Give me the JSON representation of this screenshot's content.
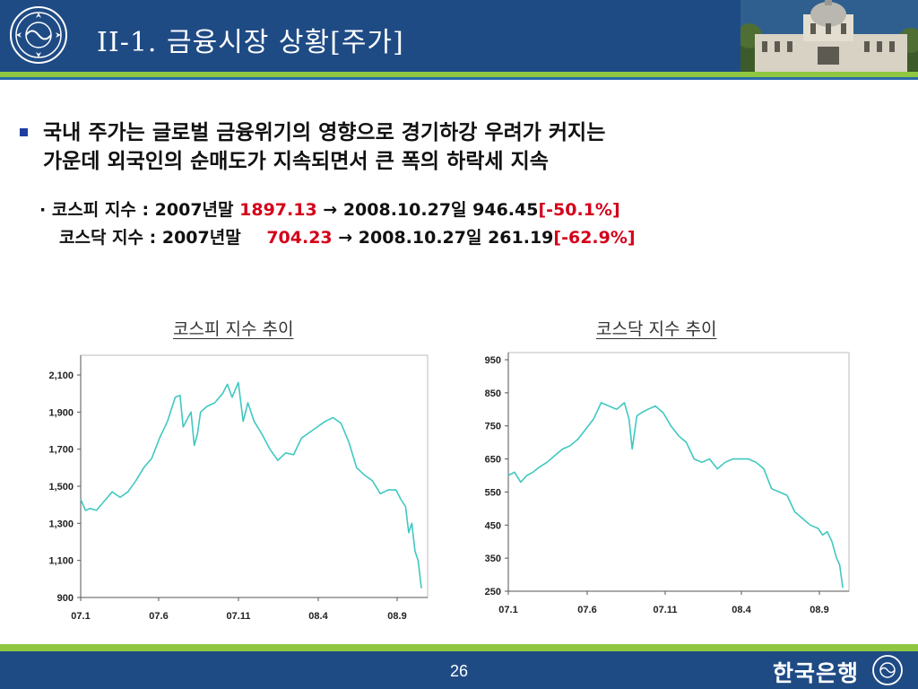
{
  "header": {
    "title": "II-1. 금융시장 상황[주가]"
  },
  "body": {
    "main_line1": "국내 주가는 글로벌 금융위기의 영향으로 경기하강 우려가 커지는",
    "main_line2": "가운데 외국인의 순매도가 지속되면서 큰 폭의 하락세 지속",
    "kospi": {
      "prefix": "· 코스피 지수 : 2007년말 ",
      "start": "1897.13",
      "arrow": " → 2008.10.27일 946.45",
      "change": "[-50.1%]"
    },
    "kosdaq": {
      "prefix": "코스닥 지수 : 2007년말 ",
      "start": "704.23",
      "arrow": " → 2008.10.27일 261.19",
      "change": "[-62.9%]"
    }
  },
  "footer": {
    "page": "26",
    "bank_name": "한국은행"
  },
  "colors": {
    "header": "#1f4b85",
    "accent_green": "#8fc742",
    "line": "#40c8c0",
    "highlight_red": "#d4001a"
  },
  "chart_data": [
    {
      "type": "line",
      "title": "코스피 지수 추이",
      "x_tick_labels": [
        "07.1",
        "07.6",
        "07.11",
        "08.4",
        "08.9"
      ],
      "y_tick_labels": [
        "2,100",
        "1,900",
        "1,700",
        "1,500",
        "1,300",
        "1,100",
        "900"
      ],
      "ylim": [
        900,
        2150
      ],
      "xlim": [
        0,
        22
      ],
      "grid": false,
      "series": [
        {
          "x": [
            0,
            0.3,
            0.6,
            1.0,
            1.5,
            2.0,
            2.5,
            3.0,
            3.5,
            4.0,
            4.5,
            5.0,
            5.5,
            6.0,
            6.3,
            6.5,
            7.0,
            7.2,
            7.4,
            7.6,
            8.0,
            8.5,
            9.0,
            9.3,
            9.6,
            10.0,
            10.3,
            10.6,
            11.0,
            11.5,
            12.0,
            12.5,
            13.0,
            13.5,
            14.0,
            14.5,
            15.0,
            15.5,
            16.0,
            16.5,
            17.0,
            17.5,
            18.0,
            18.5,
            19.0,
            19.5,
            20.0,
            20.3,
            20.6,
            20.8,
            21.0,
            21.2,
            21.4,
            21.6
          ],
          "values": [
            1430,
            1370,
            1380,
            1370,
            1420,
            1470,
            1440,
            1470,
            1530,
            1600,
            1650,
            1760,
            1850,
            1980,
            1990,
            1820,
            1900,
            1720,
            1780,
            1900,
            1930,
            1950,
            2000,
            2050,
            1980,
            2060,
            1850,
            1950,
            1850,
            1780,
            1700,
            1640,
            1680,
            1670,
            1760,
            1790,
            1820,
            1850,
            1870,
            1840,
            1740,
            1600,
            1560,
            1530,
            1460,
            1480,
            1480,
            1430,
            1390,
            1250,
            1300,
            1150,
            1100,
            950
          ]
        }
      ]
    },
    {
      "type": "line",
      "title": "코스닥 지수 추이",
      "x_tick_labels": [
        "07.1",
        "07.6",
        "07.11",
        "08.4",
        "08.9"
      ],
      "y_tick_labels": [
        "950",
        "850",
        "750",
        "650",
        "550",
        "450",
        "350",
        "250"
      ],
      "ylim": [
        250,
        950
      ],
      "xlim": [
        0,
        22
      ],
      "grid": false,
      "series": [
        {
          "x": [
            0,
            0.4,
            0.8,
            1.2,
            1.6,
            2.0,
            2.5,
            3.0,
            3.5,
            4.0,
            4.5,
            5.0,
            5.5,
            6.0,
            6.5,
            7.0,
            7.5,
            7.8,
            8.0,
            8.3,
            8.6,
            9.0,
            9.5,
            10.0,
            10.5,
            11.0,
            11.5,
            12.0,
            12.5,
            13.0,
            13.5,
            14.0,
            14.5,
            15.0,
            15.5,
            16.0,
            16.5,
            17.0,
            17.5,
            18.0,
            18.5,
            19.0,
            19.5,
            20.0,
            20.3,
            20.6,
            20.9,
            21.2,
            21.4,
            21.6
          ],
          "values": [
            600,
            610,
            580,
            600,
            610,
            625,
            640,
            660,
            680,
            690,
            710,
            740,
            770,
            820,
            810,
            800,
            820,
            770,
            680,
            780,
            790,
            800,
            810,
            790,
            750,
            720,
            700,
            650,
            640,
            650,
            620,
            640,
            650,
            650,
            650,
            640,
            620,
            560,
            550,
            540,
            490,
            470,
            450,
            440,
            420,
            430,
            400,
            350,
            330,
            260
          ]
        }
      ]
    }
  ]
}
